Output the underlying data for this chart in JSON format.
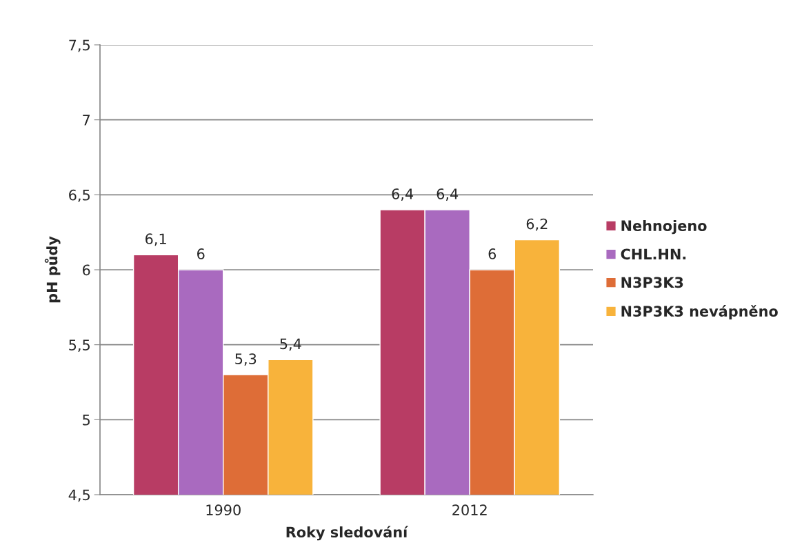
{
  "chart_data": {
    "type": "bar",
    "xlabel": "Roky sledování",
    "ylabel": "pH půdy",
    "categories": [
      "1990",
      "2012"
    ],
    "series": [
      {
        "name": "Nehnojeno",
        "color": "#b83c64",
        "values": [
          6.1,
          6.4
        ],
        "value_labels": [
          "6,1",
          "6,4"
        ]
      },
      {
        "name": "CHL.HN.",
        "color": "#a96abf",
        "values": [
          6,
          6.4
        ],
        "value_labels": [
          "6",
          "6,4"
        ]
      },
      {
        "name": "N3P3K3",
        "color": "#de6d37",
        "values": [
          5.3,
          6
        ],
        "value_labels": [
          "5,3",
          "6"
        ]
      },
      {
        "name": "N3P3K3 nevápněno",
        "color": "#f8b33b",
        "values": [
          5.4,
          6.2
        ],
        "value_labels": [
          "5,4",
          "6,2"
        ]
      }
    ],
    "ylim": [
      4.5,
      7.5
    ],
    "yticks": [
      {
        "value": 4.5,
        "label": "4,5"
      },
      5,
      {
        "value": 5.5,
        "label": "5,5"
      },
      6,
      {
        "value": 6.5,
        "label": "6,5"
      },
      7,
      {
        "value": 7.5,
        "label": "7,5"
      }
    ],
    "grid": "y",
    "legend": "right"
  }
}
